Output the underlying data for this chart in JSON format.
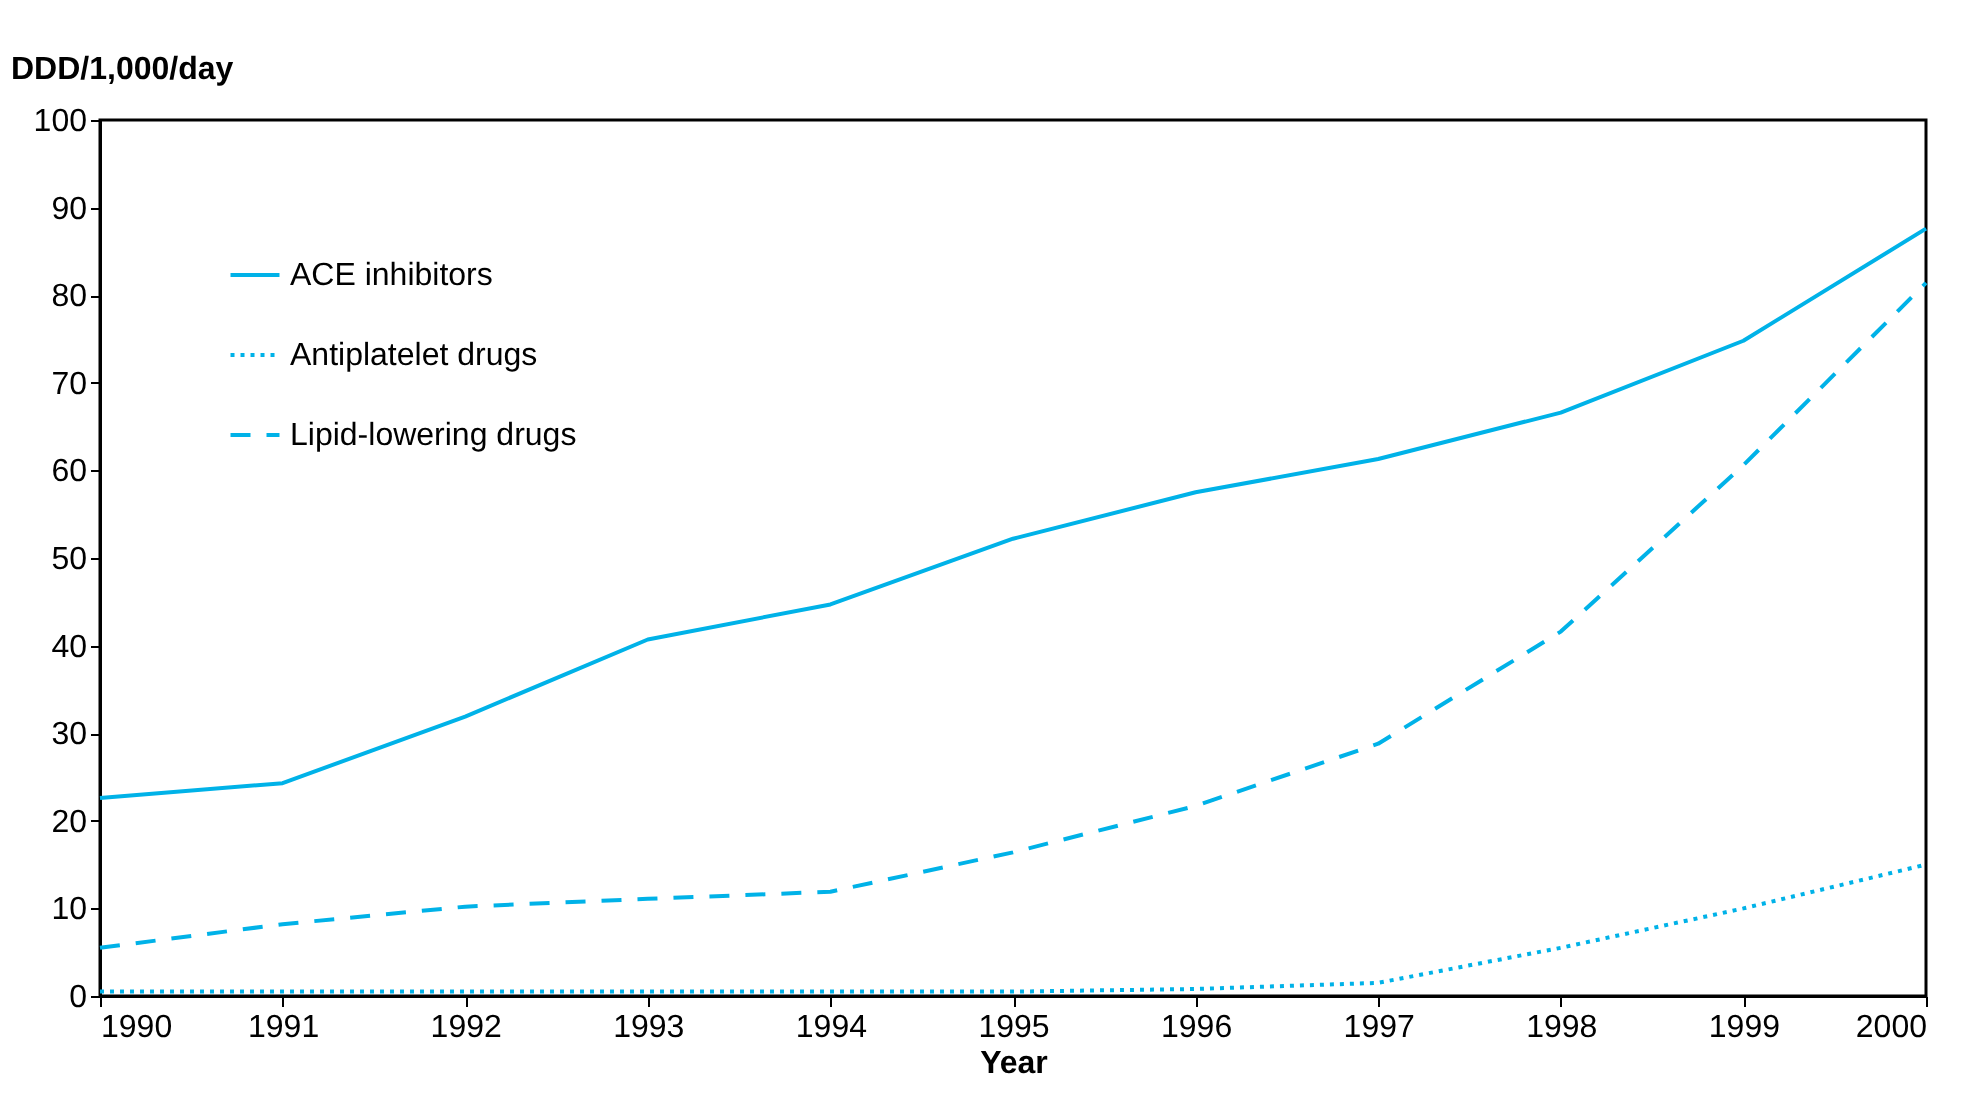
{
  "chart_data": {
    "type": "line",
    "xlabel": "Year",
    "ylabel": "DDD/1,000/day",
    "x": [
      1990,
      1991,
      1992,
      1993,
      1994,
      1995,
      1996,
      1997,
      1998,
      1999,
      2000
    ],
    "series": [
      {
        "name": "ACE inhibitors",
        "color": "#00b2e8",
        "line_style": "solid",
        "values": [
          22.6,
          24.3,
          31.9,
          40.7,
          44.7,
          52.2,
          57.5,
          61.3,
          66.6,
          74.8,
          87.6
        ]
      },
      {
        "name": "Antiplatelet drugs",
        "color": "#00b2e8",
        "line_style": "dotted",
        "values": [
          0.5,
          0.5,
          0.5,
          0.5,
          0.5,
          0.5,
          0.8,
          1.5,
          5.5,
          10,
          15
        ]
      },
      {
        "name": "Lipid-lowering drugs",
        "color": "#00b2e8",
        "line_style": "dashed",
        "values": [
          5.5,
          8.2,
          10.2,
          11.1,
          11.9,
          16.4,
          21.7,
          28.8,
          41.6,
          60.6,
          81.4
        ]
      }
    ],
    "xlim": [
      1990,
      2000
    ],
    "xticks": [
      1990,
      1991,
      1992,
      1993,
      1994,
      1995,
      1996,
      1997,
      1998,
      1999,
      2000
    ],
    "ylim": [
      0,
      100
    ],
    "yticks": [
      0,
      10,
      20,
      30,
      40,
      50,
      60,
      70,
      80,
      90,
      100
    ],
    "grid": false,
    "legend": "top left",
    "marker": "none"
  }
}
